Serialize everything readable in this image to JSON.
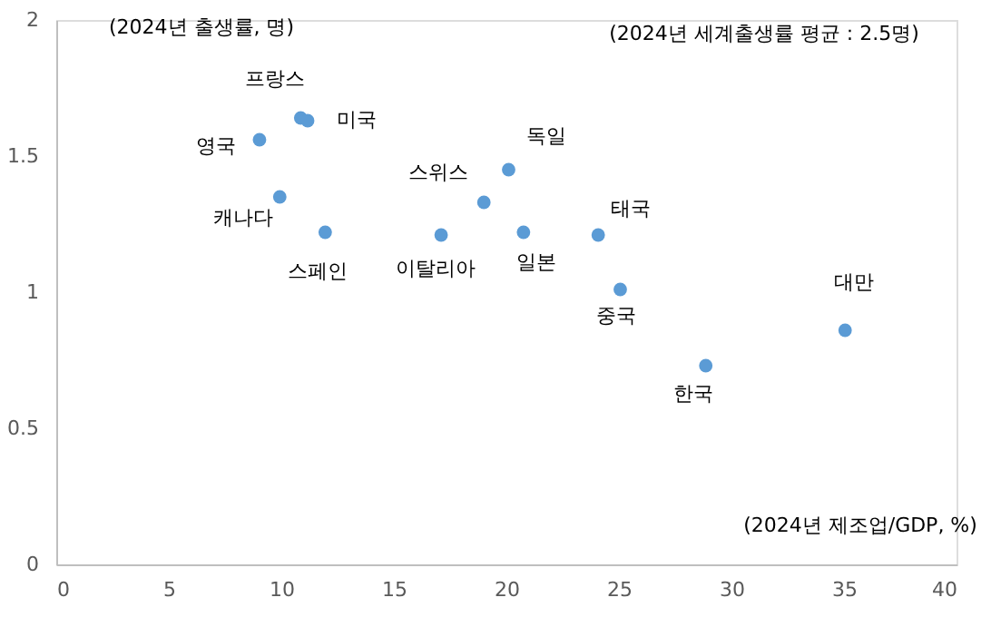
{
  "chart_data": {
    "type": "scatter",
    "xlabel": "(2024년 제조업/GDP, %)",
    "ylabel": "(2024년 출생률, 명)",
    "x": [
      10.86,
      11.17,
      9.03,
      20.1,
      19.0,
      9.93,
      11.95,
      17.1,
      20.76,
      24.08,
      25.06,
      28.86,
      35.05
    ],
    "series": [
      {
        "color": "#5b9bd5",
        "values": [
          1.64,
          1.63,
          1.56,
          1.45,
          1.33,
          1.35,
          1.22,
          1.21,
          1.22,
          1.21,
          1.01,
          0.73,
          0.86
        ]
      }
    ],
    "annotations": [
      "(2024년 세계출생률 평균 : 2.5명)",
      {
        "text": "프랑스",
        "x": 10.86,
        "y": 1.64
      },
      {
        "text": "미국",
        "x": 11.17,
        "y": 1.63
      },
      {
        "text": "영국",
        "x": 9.03,
        "y": 1.56
      },
      {
        "text": "독일",
        "x": 20.1,
        "y": 1.45
      },
      {
        "text": "스위스",
        "x": 19.0,
        "y": 1.33
      },
      {
        "text": "캐나다",
        "x": 9.93,
        "y": 1.35
      },
      {
        "text": "스페인",
        "x": 11.95,
        "y": 1.22
      },
      {
        "text": "이탈리아",
        "x": 17.1,
        "y": 1.21
      },
      {
        "text": "일본",
        "x": 20.76,
        "y": 1.22
      },
      {
        "text": "태국",
        "x": 24.08,
        "y": 1.21
      },
      {
        "text": "중국",
        "x": 25.06,
        "y": 1.01
      },
      {
        "text": "한국",
        "x": 28.86,
        "y": 0.73
      },
      {
        "text": "대만",
        "x": 35.05,
        "y": 0.86
      }
    ],
    "xlim": [
      0,
      40
    ],
    "xticks": [
      0,
      5,
      10,
      15,
      20,
      25,
      30,
      35,
      40
    ],
    "ylim": [
      0,
      2
    ],
    "yticks": [
      0,
      0.5,
      1,
      1.5,
      2
    ],
    "grid": false
  }
}
